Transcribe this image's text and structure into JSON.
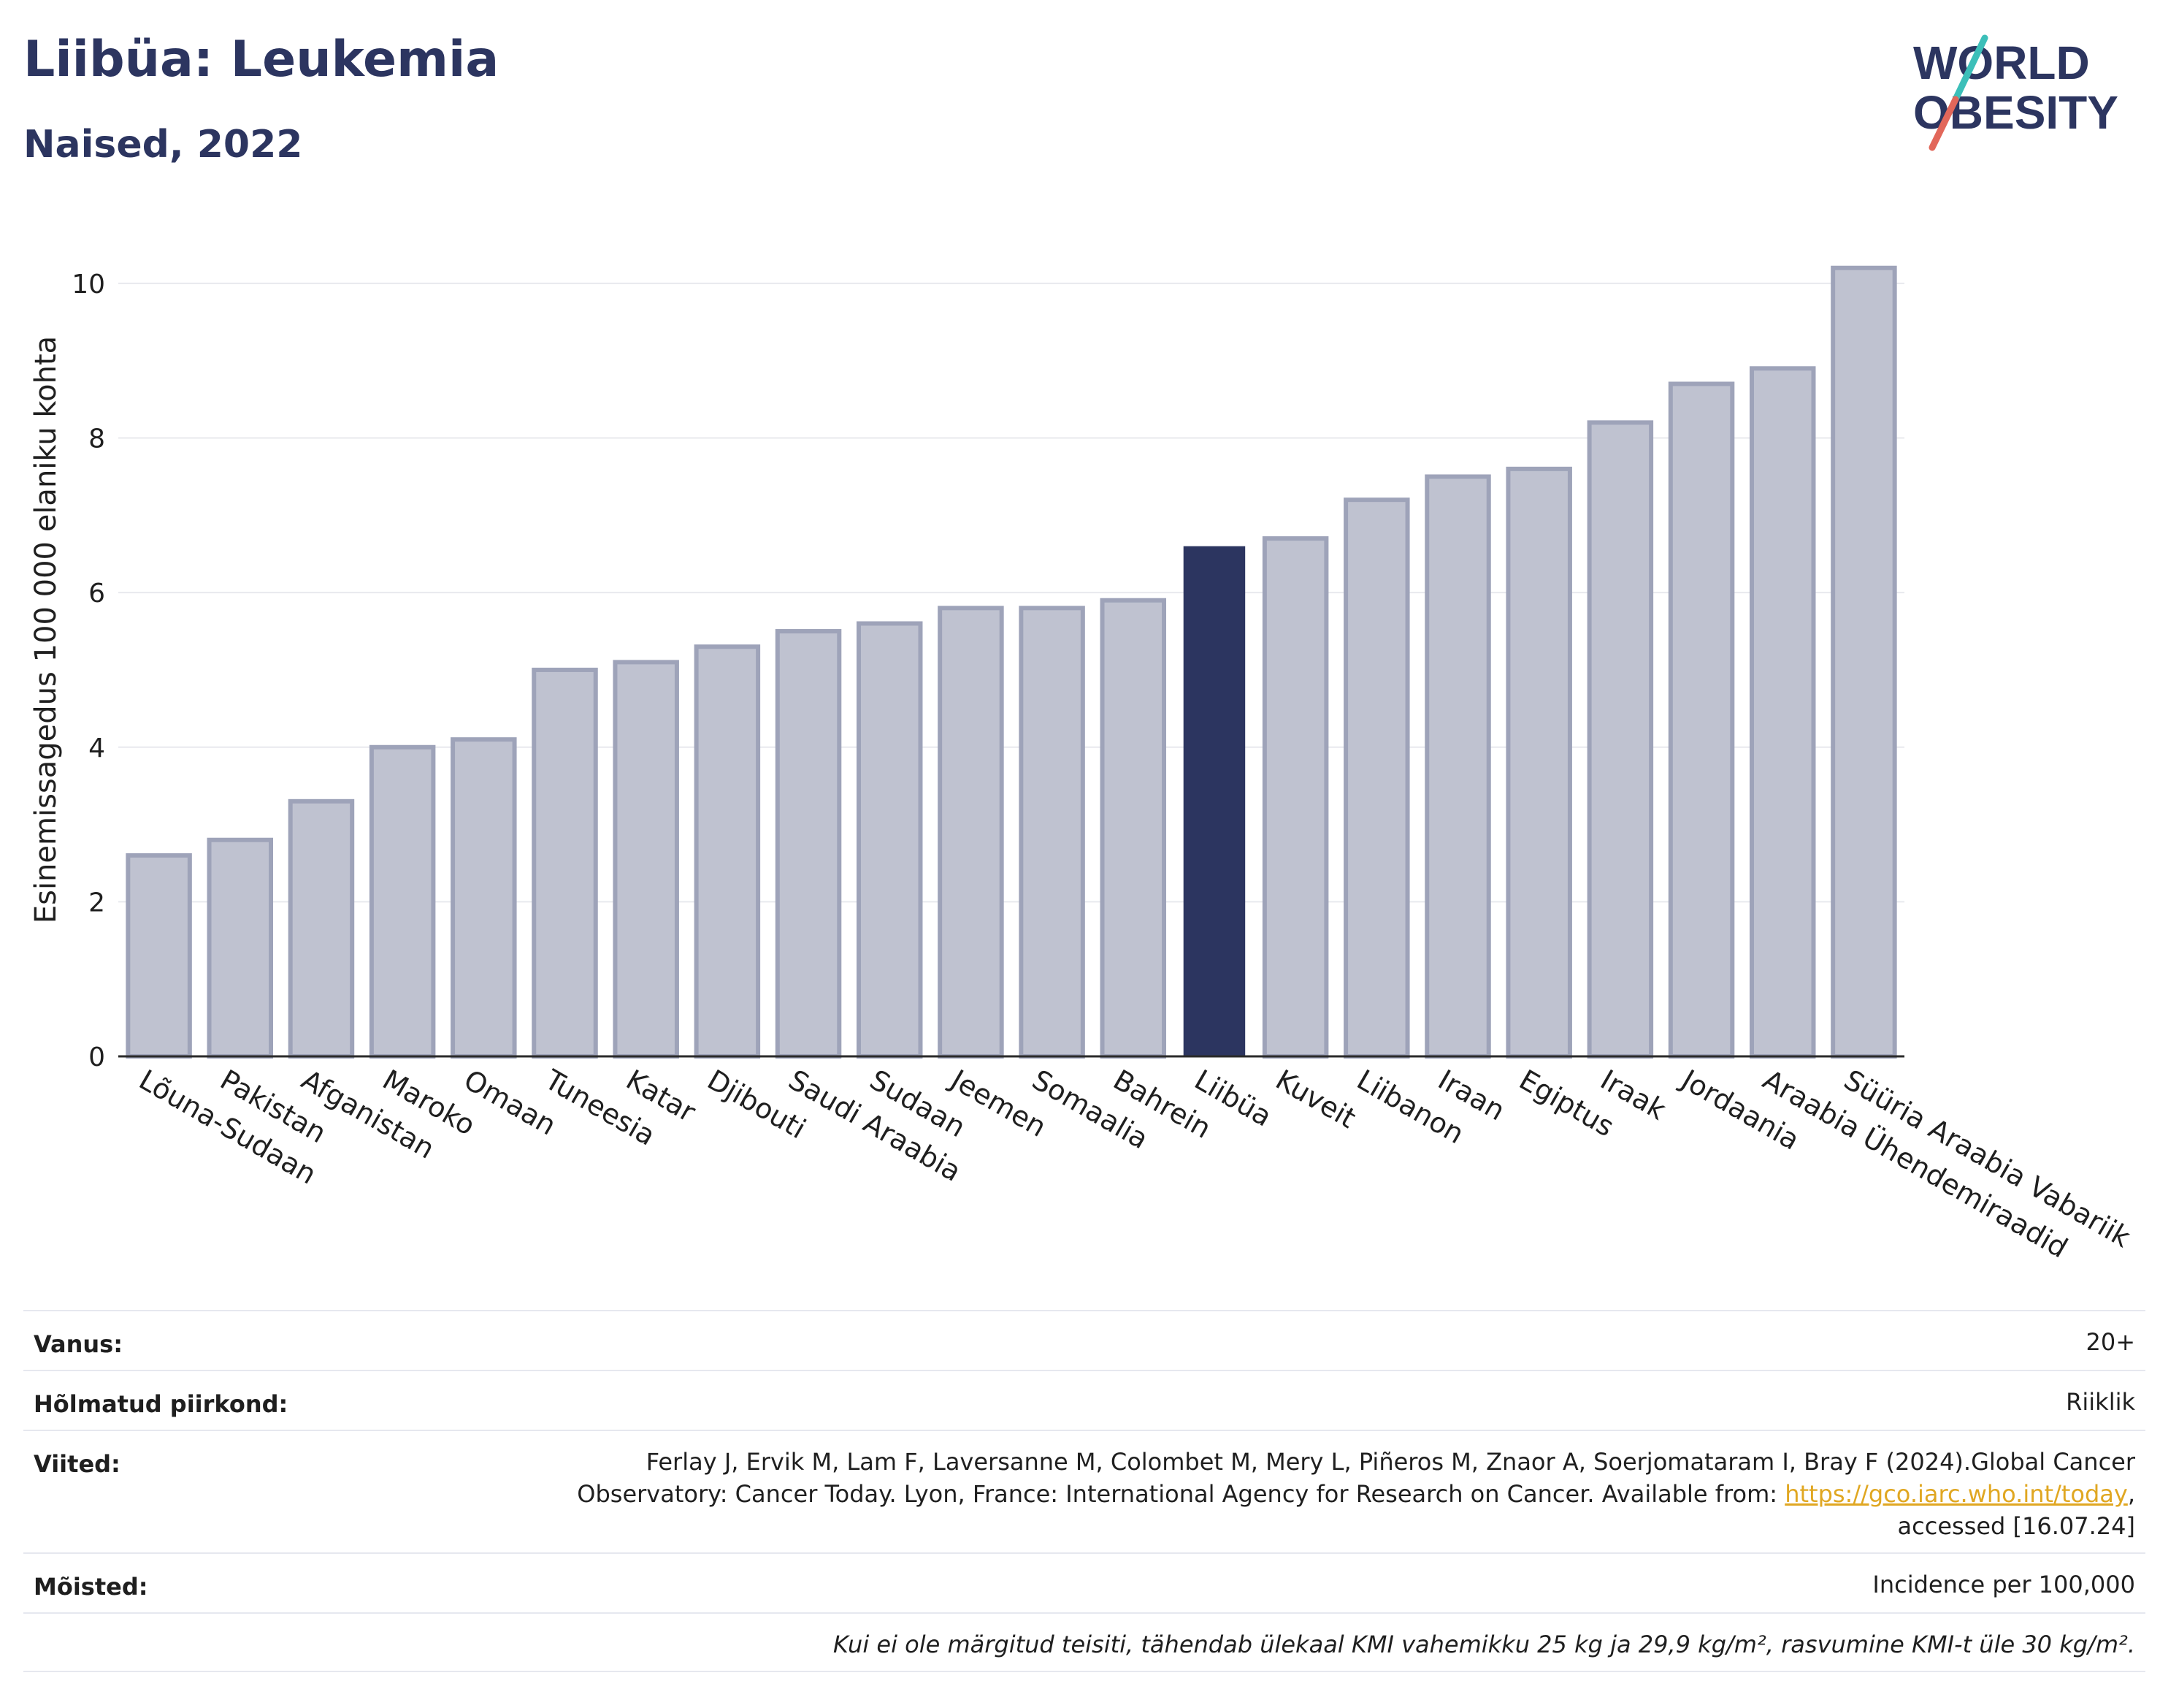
{
  "header": {
    "title": "Liibüa: Leukemia",
    "subtitle": "Naised, 2022"
  },
  "logo": {
    "line1": "WORLD",
    "line2": "OBESITY"
  },
  "colors": {
    "primary": "#2c3560",
    "bar_muted": "#bfc2d0",
    "bar_muted_border": "#9ea3b9",
    "accent_teal": "#3cbfb9",
    "accent_red": "#e2675a",
    "link": "#e0a722"
  },
  "chart_data": {
    "type": "bar",
    "title": "Liibüa: Leukemia",
    "subtitle": "Naised, 2022",
    "ylabel": "Esinemissagedus 100 000 elaniku kohta",
    "xlabel": "",
    "ylim": [
      0,
      10.5
    ],
    "yticks": [
      0,
      2,
      4,
      6,
      8,
      10
    ],
    "grid": true,
    "highlight": "Liibüa",
    "categories": [
      "Lõuna-Sudaan",
      "Pakistan",
      "Afganistan",
      "Maroko",
      "Omaan",
      "Tuneesia",
      "Katar",
      "Djibouti",
      "Saudi Araabia",
      "Sudaan",
      "Jeemen",
      "Somaalia",
      "Bahrein",
      "Liibüa",
      "Kuveit",
      "Liibanon",
      "Iraan",
      "Egiptus",
      "Iraak",
      "Jordaania",
      "Araabia Ühendemiraadid",
      "Süüria Araabia Vabariik"
    ],
    "values": [
      2.6,
      2.8,
      3.3,
      4.0,
      4.1,
      5.0,
      5.1,
      5.3,
      5.5,
      5.6,
      5.8,
      5.8,
      5.9,
      6.6,
      6.7,
      7.2,
      7.5,
      7.6,
      8.2,
      8.7,
      8.9,
      10.2
    ]
  },
  "meta": {
    "age_label": "Vanus:",
    "age_value": "20+",
    "region_label": "Hõlmatud piirkond:",
    "region_value": "Riiklik",
    "refs_label": "Viited:",
    "refs_line1": "Ferlay J, Ervik M, Lam F, Laversanne M, Colombet M, Mery L, Piñeros M, Znaor A, Soerjomataram I, Bray F (2024).Global Cancer",
    "refs_line2_prefix": "Observatory: Cancer Today. Lyon, France: International Agency for Research on Cancer. Available from: ",
    "refs_link": "https://gco.iarc.who.int/today",
    "refs_line2_suffix": ",",
    "refs_line3": "accessed [16.07.24]",
    "defs_label": "Mõisted:",
    "defs_value": "Incidence per 100,000",
    "footnote": "Kui ei ole märgitud teisiti, tähendab ülekaal KMI vahemikku 25 kg ja 29,9 kg/m², rasvumine KMI-t üle 30 kg/m²."
  }
}
